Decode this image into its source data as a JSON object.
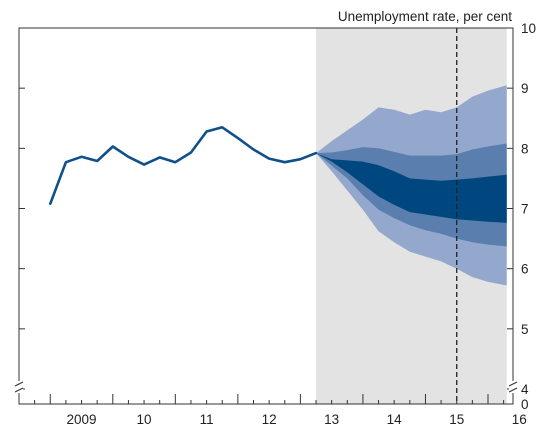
{
  "chart_data": {
    "type": "area",
    "title": "",
    "ylabel": "Unemployment rate, per cent",
    "xlabel": "",
    "xlim": [
      2008.5,
      2016.4
    ],
    "ylim": [
      4,
      10
    ],
    "y_axis_side": "right",
    "y_axis_break": true,
    "y_ticks": [
      "4",
      "5",
      "6",
      "7",
      "8",
      "9",
      "10"
    ],
    "y_zero_label": "0",
    "x_ticks": [
      {
        "value": 2009.5,
        "label": "2009"
      },
      {
        "value": 2010.5,
        "label": "10"
      },
      {
        "value": 2011.5,
        "label": "11"
      },
      {
        "value": 2012.5,
        "label": "12"
      },
      {
        "value": 2013.5,
        "label": "13"
      },
      {
        "value": 2014.5,
        "label": "14"
      },
      {
        "value": 2015.5,
        "label": "15"
      },
      {
        "value": 2016.5,
        "label": "16"
      }
    ],
    "forecast_region": [
      2013.25,
      2016.3
    ],
    "vertical_marker": 2015.5,
    "colors": {
      "history": "#10508a",
      "shade": "#e3e3e3",
      "band_outer": "#93a8cc",
      "band_middle": "#5a7fae",
      "band_inner": "#00477f"
    },
    "history": {
      "x": [
        2009.0,
        2009.25,
        2009.5,
        2009.75,
        2010.0,
        2010.25,
        2010.5,
        2010.75,
        2011.0,
        2011.25,
        2011.5,
        2011.75,
        2012.0,
        2012.25,
        2012.5,
        2012.75,
        2013.0,
        2013.25
      ],
      "y": [
        7.08,
        7.77,
        7.86,
        7.79,
        8.03,
        7.86,
        7.73,
        7.85,
        7.77,
        7.93,
        8.28,
        8.35,
        8.17,
        7.98,
        7.83,
        7.77,
        7.82,
        7.92
      ]
    },
    "fan": {
      "x": [
        2013.25,
        2013.5,
        2013.75,
        2014.0,
        2014.25,
        2014.5,
        2014.75,
        2015.0,
        2015.25,
        2015.5,
        2015.75,
        2016.0,
        2016.3
      ],
      "outer_upper": [
        7.92,
        8.12,
        8.3,
        8.48,
        8.68,
        8.64,
        8.56,
        8.64,
        8.6,
        8.68,
        8.86,
        8.96,
        9.05
      ],
      "middle_upper": [
        7.92,
        7.93,
        7.97,
        8.02,
        8.0,
        7.94,
        7.88,
        7.88,
        7.88,
        7.9,
        7.98,
        8.03,
        8.08
      ],
      "inner_upper": [
        7.92,
        7.82,
        7.8,
        7.78,
        7.72,
        7.62,
        7.5,
        7.48,
        7.46,
        7.48,
        7.5,
        7.53,
        7.56
      ],
      "inner_lower": [
        7.92,
        7.78,
        7.6,
        7.4,
        7.2,
        7.06,
        6.94,
        6.9,
        6.86,
        6.82,
        6.8,
        6.78,
        6.76
      ],
      "middle_lower": [
        7.92,
        7.71,
        7.5,
        7.22,
        6.98,
        6.84,
        6.72,
        6.64,
        6.58,
        6.5,
        6.44,
        6.4,
        6.37
      ],
      "outer_lower": [
        7.92,
        7.62,
        7.3,
        6.98,
        6.62,
        6.44,
        6.28,
        6.2,
        6.12,
        6.0,
        5.86,
        5.78,
        5.72
      ]
    }
  }
}
